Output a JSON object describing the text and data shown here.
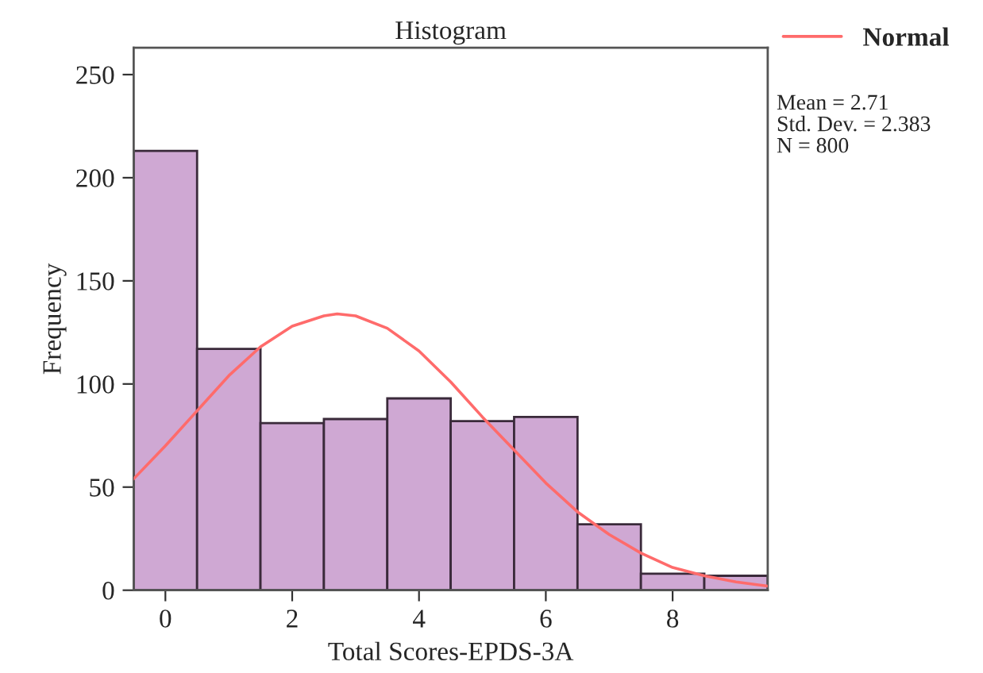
{
  "chart_data": {
    "type": "histogram",
    "title": "Histogram",
    "xlabel": "Total Scores-EPDS-3A",
    "ylabel": "Frequency",
    "bins": [
      -0.5,
      0.5,
      1.5,
      2.5,
      3.5,
      4.5,
      5.5,
      6.5,
      7.5,
      8.5,
      9.5
    ],
    "values": [
      213,
      117,
      81,
      83,
      93,
      82,
      84,
      32,
      8,
      7
    ],
    "color": "#cfa8d3",
    "series": [
      {
        "type": "line",
        "name": "Normal",
        "color": "#ff6b6b",
        "x": [
          -0.5,
          0,
          0.5,
          1,
          1.5,
          2,
          2.5,
          2.71,
          3,
          3.5,
          4,
          4.5,
          5,
          5.5,
          6,
          6.5,
          7,
          7.5,
          8,
          8.5,
          9,
          9.5
        ],
        "values": [
          54,
          70,
          87,
          104,
          118,
          128,
          133,
          134,
          133,
          127,
          116,
          101,
          84,
          68,
          52,
          38,
          27,
          18,
          11,
          7,
          4,
          2
        ]
      }
    ],
    "xlim": [
      -0.5,
      9.5
    ],
    "ylim": [
      0,
      263
    ],
    "xticks": [
      0,
      2,
      4,
      6,
      8
    ],
    "yticks": [
      0,
      50,
      100,
      150,
      200,
      250
    ],
    "grid": false,
    "legend": "top right",
    "annotations": [
      "Mean = 2.71",
      "Std. Dev. = 2.383",
      "N = 800"
    ]
  }
}
